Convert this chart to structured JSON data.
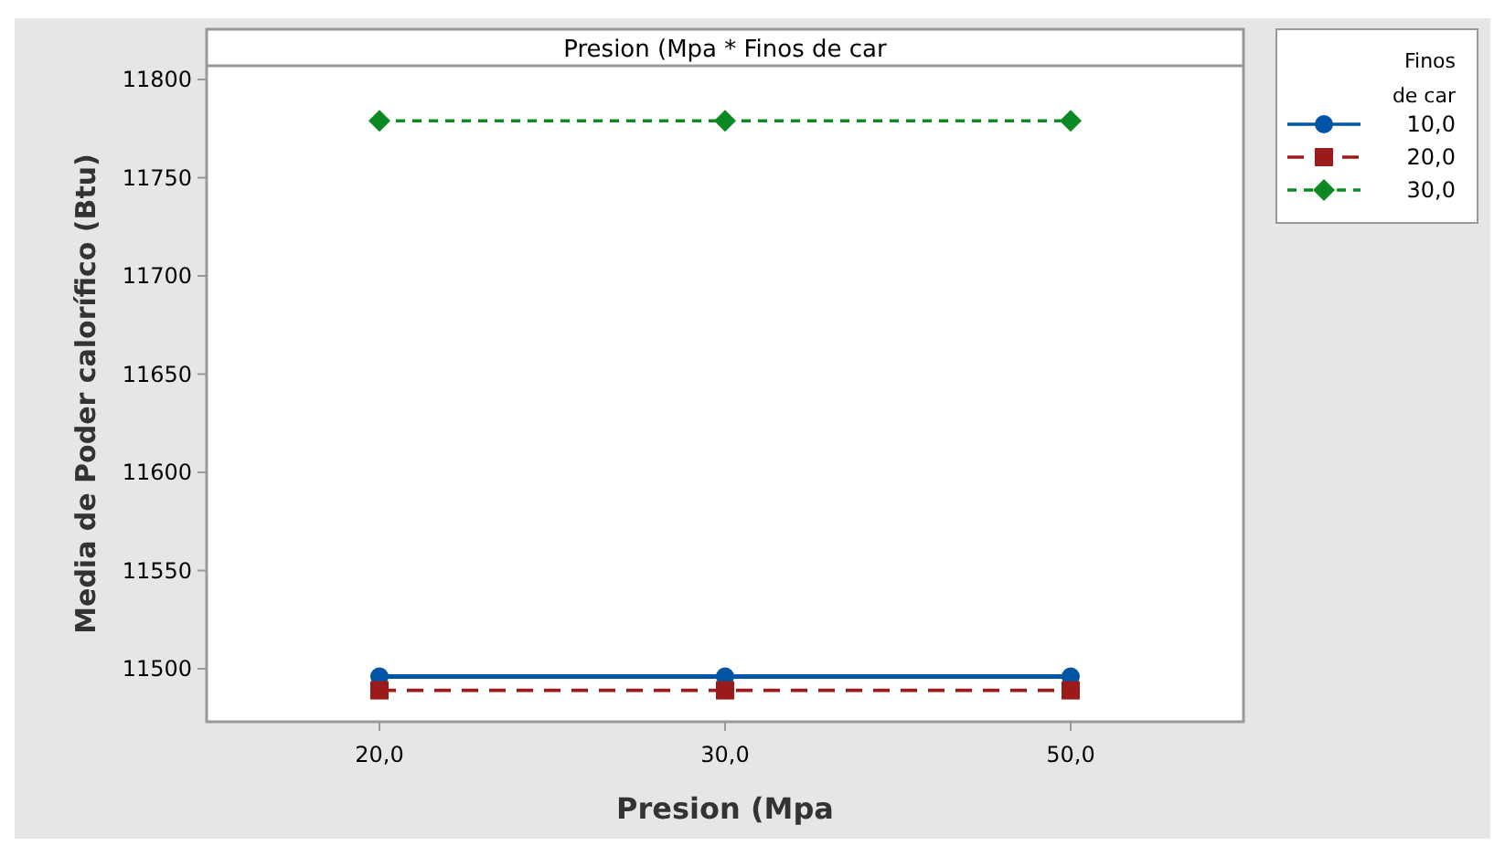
{
  "chart_data": {
    "type": "line",
    "title": "Presion (Mpa * Finos de car",
    "xlabel": "Presion (Mpa",
    "ylabel": "Media de Poder calorífico (Btu)",
    "legend_title": "Finos de car",
    "categories": [
      "20,0",
      "30,0",
      "50,0"
    ],
    "series": [
      {
        "name": "10,0",
        "color": "#0054a6",
        "values": [
          11496,
          11496,
          11496
        ],
        "marker": "circle",
        "line_style": "solid"
      },
      {
        "name": "20,0",
        "color": "#9b1b1b",
        "values": [
          11489,
          11489,
          11489
        ],
        "marker": "square",
        "line_style": "dashed"
      },
      {
        "name": "30,0",
        "color": "#0b8a24",
        "values": [
          11779,
          11779,
          11779
        ],
        "marker": "diamond",
        "line_style": "dotted"
      }
    ],
    "ylim": [
      11473,
      11807
    ],
    "yticks": [
      11500,
      11550,
      11600,
      11650,
      11700,
      11750,
      11800
    ],
    "grid": false,
    "legend": "top right"
  }
}
